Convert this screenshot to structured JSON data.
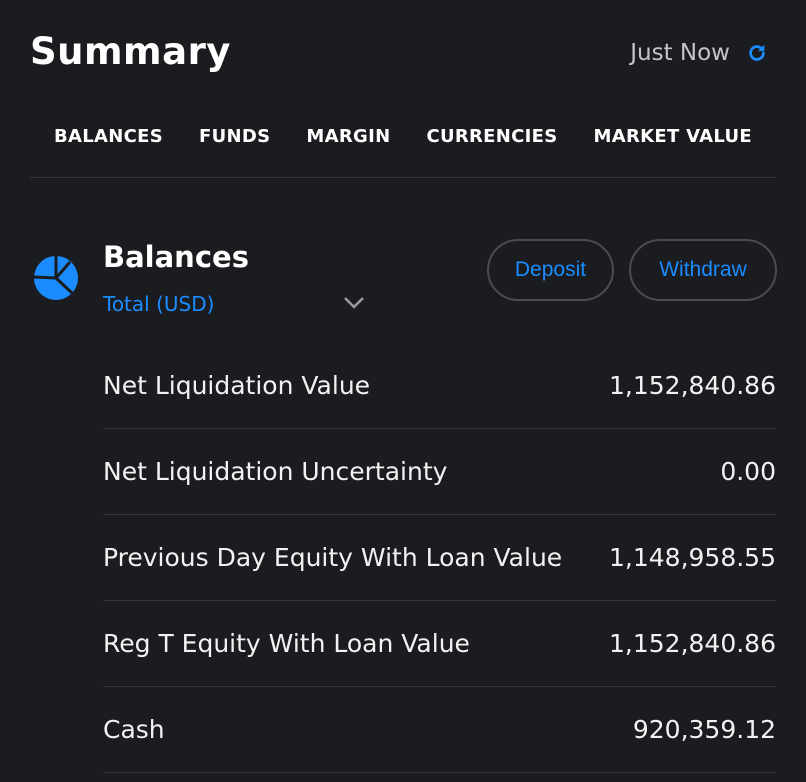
{
  "header": {
    "title": "Summary",
    "updated": "Just Now",
    "refresh_icon": "refresh-icon",
    "accent": "#1a8cff"
  },
  "tabs": [
    {
      "label": "BALANCES"
    },
    {
      "label": "FUNDS"
    },
    {
      "label": "MARGIN"
    },
    {
      "label": "CURRENCIES"
    },
    {
      "label": "MARKET VALUE"
    }
  ],
  "section": {
    "title": "Balances",
    "subtitle": "Total (USD)",
    "icon": "pie-chart-icon",
    "deposit_label": "Deposit",
    "withdraw_label": "Withdraw"
  },
  "rows": [
    {
      "label": "Net Liquidation Value",
      "value": "1,152,840.86"
    },
    {
      "label": "Net Liquidation Uncertainty",
      "value": "0.00"
    },
    {
      "label": "Previous Day Equity With Loan Value",
      "value": "1,148,958.55"
    },
    {
      "label": "Reg T Equity With Loan Value",
      "value": "1,152,840.86"
    },
    {
      "label": "Cash",
      "value": "920,359.12"
    }
  ]
}
